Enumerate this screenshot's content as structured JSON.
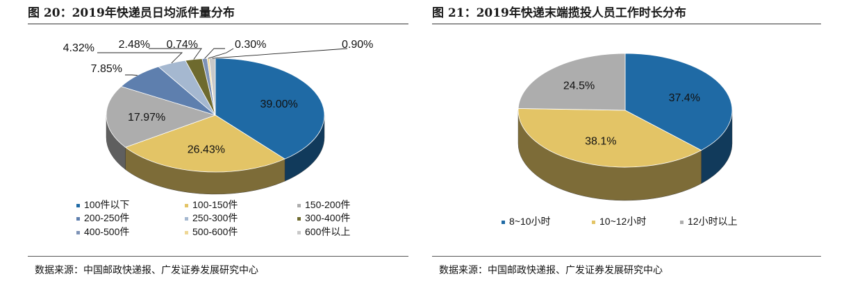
{
  "figures": [
    {
      "title": "图 20：2019年快递员日均派件量分布",
      "source": "数据来源：中国邮政快递报、广发证券发展研究中心"
    },
    {
      "title": "图 21：2019年快递末端揽投人员工作时长分布",
      "source": "数据来源：中国邮政快递报、广发证券发展研究中心"
    }
  ],
  "chart_data": [
    {
      "type": "pie",
      "title": "图 20：2019年快递员日均派件量分布",
      "legend_placement": "bottom",
      "slices": [
        {
          "name": "100件以下",
          "value": 39.0,
          "label": "39.00%",
          "color": "#1F6AA5"
        },
        {
          "name": "100-150件",
          "value": 26.43,
          "label": "26.43%",
          "color": "#E3C466"
        },
        {
          "name": "150-200件",
          "value": 17.97,
          "label": "17.97%",
          "color": "#ADADAD"
        },
        {
          "name": "200-250件",
          "value": 7.85,
          "label": "7.85%",
          "color": "#5E7FAE"
        },
        {
          "name": "250-300件",
          "value": 4.32,
          "label": "4.32%",
          "color": "#A5B8D0"
        },
        {
          "name": "300-400件",
          "value": 2.48,
          "label": "2.48%",
          "color": "#6E6A2E"
        },
        {
          "name": "400-500件",
          "value": 0.74,
          "label": "0.74%",
          "color": "#7D92B6"
        },
        {
          "name": "500-600件",
          "value": 0.3,
          "label": "0.30%",
          "color": "#EED796"
        },
        {
          "name": "600件以上",
          "value": 0.9,
          "label": "0.90%",
          "color": "#C8C8C8"
        }
      ]
    },
    {
      "type": "pie",
      "title": "图 21：2019年快递末端揽投人员工作时长分布",
      "legend_placement": "bottom",
      "slices": [
        {
          "name": "8~10小时",
          "value": 37.4,
          "label": "37.4%",
          "color": "#1F6AA5"
        },
        {
          "name": "10~12小时",
          "value": 38.1,
          "label": "38.1%",
          "color": "#E3C466"
        },
        {
          "name": "12小时以上",
          "value": 24.5,
          "label": "24.5%",
          "color": "#ADADAD"
        }
      ]
    }
  ]
}
